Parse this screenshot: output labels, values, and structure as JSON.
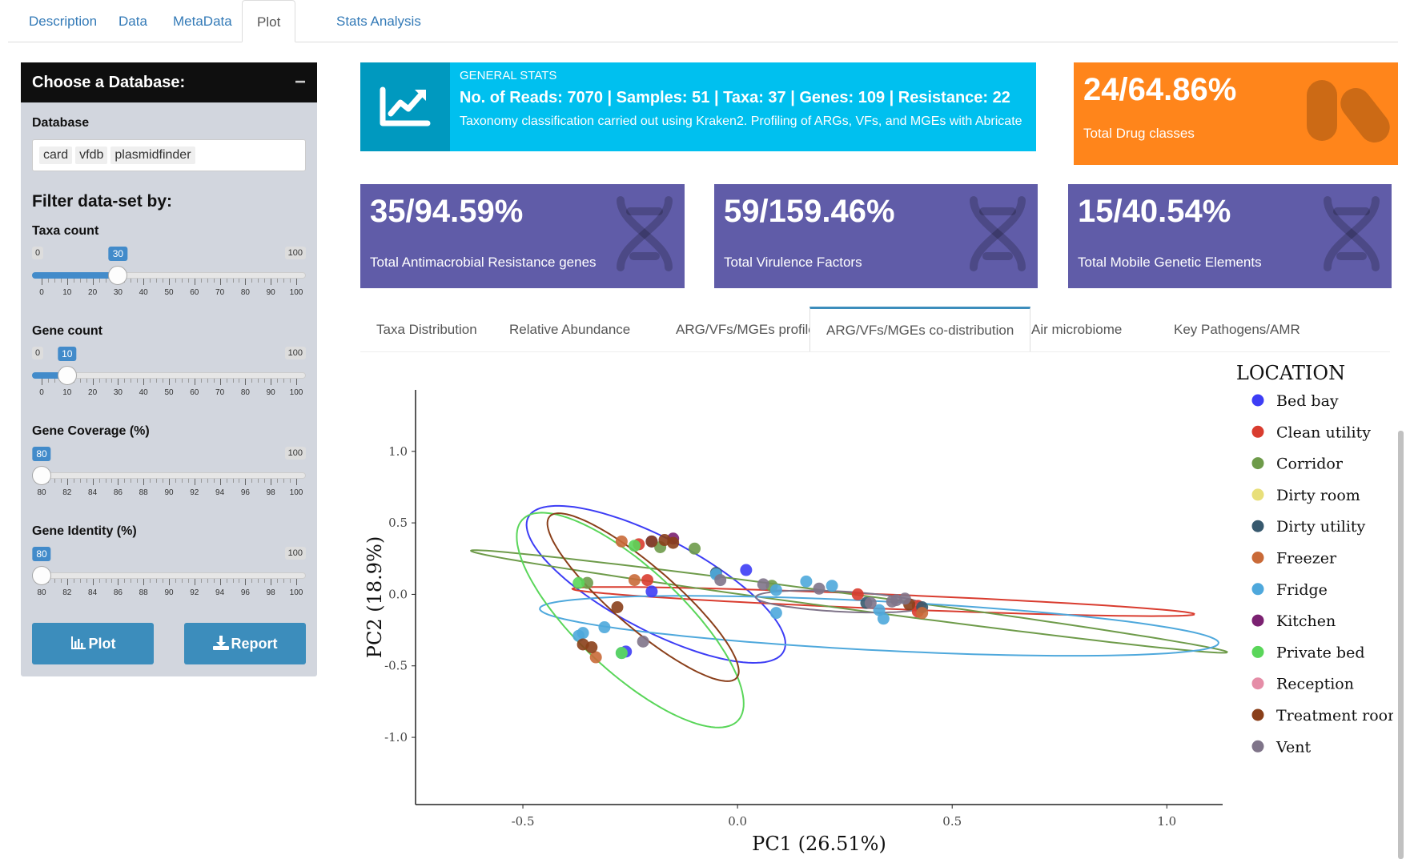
{
  "top_tabs": [
    "Description",
    "Data",
    "MetaData",
    "Plot",
    "Stats Analysis"
  ],
  "active_top_tab": "Plot",
  "sidebar": {
    "title": "Choose a Database:",
    "collapse": "−",
    "database_label": "Database",
    "databases": [
      "card",
      "vfdb",
      "plasmidfinder"
    ],
    "filter_title": "Filter data-set by:",
    "sliders": [
      {
        "label": "Taxa count",
        "min": 0,
        "max": 100,
        "value": 30,
        "ticks": [
          0,
          10,
          20,
          30,
          40,
          50,
          60,
          70,
          80,
          90,
          100
        ]
      },
      {
        "label": "Gene count",
        "min": 0,
        "max": 100,
        "value": 10,
        "ticks": [
          0,
          10,
          20,
          30,
          40,
          50,
          60,
          70,
          80,
          90,
          100
        ]
      },
      {
        "label": "Gene Coverage (%)",
        "min": 80,
        "max": 100,
        "value": 80,
        "ticks": [
          80,
          82,
          84,
          86,
          88,
          90,
          92,
          94,
          96,
          98,
          100
        ]
      },
      {
        "label": "Gene Identity (%)",
        "min": 80,
        "max": 100,
        "value": 80,
        "ticks": [
          80,
          82,
          84,
          86,
          88,
          90,
          92,
          94,
          96,
          98,
          100
        ]
      }
    ],
    "plot_button": "Plot",
    "report_button": "Report"
  },
  "general_stats": {
    "subtitle": "GENERAL STATS",
    "main": "No. of Reads: 7070 | Samples: 51 | Taxa: 37 | Genes: 109 | Resistance: 22",
    "description": "Taxonomy classification carried out using Kraken2. Profiling of ARGs, VFs, and MGEs with Abricate",
    "icon": "line-chart-icon"
  },
  "value_boxes": [
    {
      "value": "24/64.86%",
      "label": "Total Drug classes",
      "icon": "pills-icon",
      "color": "#ff851b"
    },
    {
      "value": "35/94.59%",
      "label": "Total Antimacrobial Resistance genes",
      "icon": "dna-icon",
      "color": "#605ca8"
    },
    {
      "value": "59/159.46%",
      "label": "Total Virulence Factors",
      "icon": "dna-icon",
      "color": "#605ca8"
    },
    {
      "value": "15/40.54%",
      "label": "Total Mobile Genetic Elements",
      "icon": "dna-icon",
      "color": "#605ca8"
    }
  ],
  "sub_tabs": [
    "Taxa Distribution",
    "Relative Abundance",
    "ARG/VFs/MGEs profile",
    "ARG/VFs/MGEs co-distribution",
    "Air microbiome",
    "Key Pathogens/AMR"
  ],
  "active_sub_tab": "ARG/VFs/MGEs co-distribution",
  "chart_data": {
    "type": "scatter",
    "xlabel": "PC1 (26.51%)",
    "ylabel": "PC2 (18.9%)",
    "xlim": [
      -0.75,
      1.13
    ],
    "ylim": [
      -1.47,
      1.43
    ],
    "xticks": [
      -0.5,
      0.0,
      0.5,
      1.0
    ],
    "yticks": [
      -1.0,
      -0.5,
      0.0,
      0.5,
      1.0
    ],
    "grid": false,
    "legend_title": "LOCATION",
    "legend_position": "right",
    "series": [
      {
        "name": "Bed bay",
        "color": "#3d3df5",
        "points": [
          [
            -0.2,
            0.37
          ],
          [
            0.02,
            0.17
          ],
          [
            -0.2,
            0.02
          ],
          [
            -0.26,
            -0.4
          ]
        ],
        "ellipse": {
          "cx": -0.19,
          "cy": 0.07,
          "rx": 0.6,
          "ry": 0.18,
          "angle": 115
        }
      },
      {
        "name": "Clean utility",
        "color": "#d93c2f",
        "points": [
          [
            -0.21,
            0.1
          ],
          [
            0.28,
            0.0
          ],
          [
            0.42,
            -0.08
          ],
          [
            0.42,
            -0.12
          ],
          [
            -0.23,
            0.35
          ]
        ],
        "ellipse": {
          "cx": 0.34,
          "cy": -0.05,
          "rx": 0.73,
          "ry": 0.05,
          "angle": -7
        }
      },
      {
        "name": "Corridor",
        "color": "#6e9b4a",
        "points": [
          [
            -0.35,
            0.08
          ],
          [
            -0.18,
            0.33
          ],
          [
            -0.1,
            0.32
          ],
          [
            0.08,
            0.06
          ]
        ],
        "ellipse": {
          "cx": 0.26,
          "cy": -0.05,
          "rx": 0.95,
          "ry": 0.05,
          "angle": -22
        }
      },
      {
        "name": "Dirty room",
        "color": "#e8df7a",
        "points": []
      },
      {
        "name": "Dirty utility",
        "color": "#37596e",
        "points": [
          [
            -0.05,
            0.15
          ],
          [
            0.43,
            -0.09
          ],
          [
            0.3,
            -0.06
          ]
        ]
      },
      {
        "name": "Freezer",
        "color": "#c96a38",
        "points": [
          [
            -0.24,
            0.1
          ],
          [
            -0.33,
            -0.44
          ],
          [
            0.43,
            -0.13
          ],
          [
            -0.27,
            0.37
          ]
        ]
      },
      {
        "name": "Fridge",
        "color": "#4ea8dc",
        "points": [
          [
            -0.36,
            -0.27
          ],
          [
            -0.31,
            -0.23
          ],
          [
            -0.37,
            -0.29
          ],
          [
            0.09,
            -0.13
          ],
          [
            0.09,
            0.03
          ],
          [
            0.16,
            0.09
          ],
          [
            0.22,
            0.06
          ],
          [
            0.33,
            -0.11
          ],
          [
            0.34,
            -0.17
          ],
          [
            -0.27,
            -0.41
          ],
          [
            -0.05,
            0.14
          ]
        ],
        "ellipse": {
          "cx": 0.33,
          "cy": -0.22,
          "rx": 0.8,
          "ry": 0.17,
          "angle": -9
        }
      },
      {
        "name": "Kitchen",
        "color": "#7b2171",
        "points": [
          [
            -0.15,
            0.39
          ]
        ]
      },
      {
        "name": "Private bed",
        "color": "#5ad65a",
        "points": [
          [
            -0.24,
            0.34
          ],
          [
            -0.37,
            0.08
          ],
          [
            -0.27,
            -0.41
          ]
        ],
        "ellipse": {
          "cx": -0.25,
          "cy": -0.18,
          "rx": 0.78,
          "ry": 0.16,
          "angle": 106
        }
      },
      {
        "name": "Reception",
        "color": "#e58da7",
        "points": []
      },
      {
        "name": "Treatment room",
        "color": "#8a3f1a",
        "points": [
          [
            -0.2,
            0.37
          ],
          [
            -0.17,
            0.38
          ],
          [
            -0.15,
            0.36
          ],
          [
            -0.36,
            -0.35
          ],
          [
            -0.34,
            -0.37
          ],
          [
            -0.28,
            -0.09
          ],
          [
            0.4,
            -0.07
          ]
        ],
        "ellipse": {
          "cx": -0.22,
          "cy": -0.02,
          "rx": 0.62,
          "ry": 0.1,
          "angle": 109
        }
      },
      {
        "name": "Vent",
        "color": "#7f7489",
        "points": [
          [
            -0.04,
            0.1
          ],
          [
            0.06,
            0.07
          ],
          [
            0.19,
            0.04
          ],
          [
            0.31,
            -0.06
          ],
          [
            0.36,
            -0.05
          ],
          [
            0.37,
            -0.04
          ],
          [
            0.39,
            -0.03
          ],
          [
            -0.22,
            -0.33
          ]
        ],
        "ellipse": {
          "cx": 0.24,
          "cy": -0.05,
          "rx": 0.2,
          "ry": 0.07,
          "angle": -10
        }
      }
    ]
  }
}
